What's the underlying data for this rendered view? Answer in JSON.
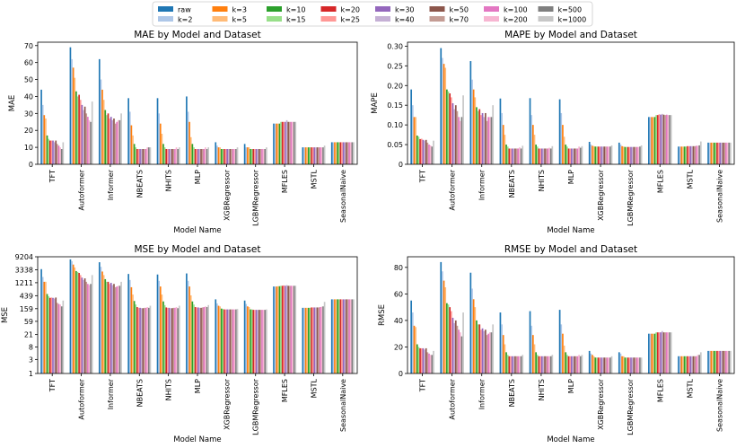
{
  "legend": [
    "raw",
    "k=2",
    "k=3",
    "k=5",
    "k=10",
    "k=15",
    "k=20",
    "k=25",
    "k=30",
    "k=40",
    "k=50",
    "k=70",
    "k=100",
    "k=200",
    "k=500",
    "k=1000"
  ],
  "colors": [
    "#1f77b4",
    "#aec7e8",
    "#ff7f0e",
    "#ffbb78",
    "#2ca02c",
    "#98df8a",
    "#d62728",
    "#ff9896",
    "#9467bd",
    "#c5b0d5",
    "#8c564b",
    "#c49c94",
    "#e377c2",
    "#f7b6d2",
    "#7f7f7f",
    "#c7c7c7"
  ],
  "chart_data": [
    {
      "type": "bar",
      "title": "MAE by Model and Dataset",
      "xlabel": "Model Name",
      "ylabel": "MAE",
      "scale": "linear",
      "ylim": [
        0,
        72
      ],
      "yticks": [
        0,
        10,
        20,
        30,
        40,
        50,
        60,
        70
      ],
      "categories": [
        "TFT",
        "Autoformer",
        "Informer",
        "NBEATS",
        "NHITS",
        "MLP",
        "XGBRegressor",
        "LGBMRegressor",
        "MFLES",
        "MSTL",
        "SeasonalNaive"
      ],
      "series_values": [
        [
          44,
          35,
          29,
          27,
          17,
          15,
          14,
          14,
          14,
          13,
          14,
          12,
          11,
          10,
          9,
          13
        ],
        [
          69,
          62,
          57,
          51,
          43,
          40,
          41,
          38,
          35,
          32,
          34,
          30,
          28,
          26,
          25,
          37
        ],
        [
          62,
          50,
          44,
          38,
          32,
          29,
          30,
          27,
          28,
          26,
          27,
          24,
          25,
          26,
          26,
          30
        ],
        [
          39,
          31,
          23,
          17,
          12,
          10,
          9,
          9,
          9,
          9,
          9,
          9,
          9,
          10,
          10,
          10
        ],
        [
          39,
          30,
          24,
          18,
          12,
          10,
          9,
          9,
          9,
          9,
          9,
          9,
          9,
          10,
          9,
          10
        ],
        [
          40,
          31,
          25,
          16,
          12,
          10,
          9,
          9,
          9,
          9,
          9,
          9,
          9,
          10,
          9,
          10
        ],
        [
          13,
          11,
          10,
          10,
          9,
          9,
          9,
          9,
          9,
          9,
          9,
          9,
          9,
          9,
          9,
          10
        ],
        [
          12,
          10,
          10,
          10,
          9,
          9,
          9,
          9,
          9,
          9,
          9,
          9,
          9,
          9,
          9,
          10
        ],
        [
          24,
          24,
          24,
          24,
          24,
          25,
          25,
          25,
          25,
          26,
          25,
          25,
          25,
          25,
          25,
          25
        ],
        [
          10,
          10,
          10,
          10,
          10,
          10,
          10,
          10,
          10,
          10,
          10,
          10,
          10,
          10,
          10,
          11
        ],
        [
          13,
          13,
          13,
          13,
          13,
          13,
          13,
          13,
          13,
          13,
          13,
          13,
          13,
          13,
          13,
          13
        ]
      ]
    },
    {
      "type": "bar",
      "title": "MAPE by Model and Dataset",
      "xlabel": "Model Name",
      "ylabel": "MAPE",
      "scale": "linear",
      "ylim": [
        0,
        0.31
      ],
      "yticks": [
        0,
        0.05,
        0.1,
        0.15,
        0.2,
        0.25,
        0.3
      ],
      "categories": [
        "TFT",
        "Autoformer",
        "Informer",
        "NBEATS",
        "NHITS",
        "MLP",
        "XGBRegressor",
        "LGBMRegressor",
        "MFLES",
        "MSTL",
        "SeasonalNaive"
      ],
      "series_values": [
        [
          0.19,
          0.15,
          0.12,
          0.12,
          0.073,
          0.07,
          0.064,
          0.065,
          0.062,
          0.06,
          0.062,
          0.055,
          0.05,
          0.048,
          0.045,
          0.06
        ],
        [
          0.295,
          0.27,
          0.255,
          0.245,
          0.19,
          0.185,
          0.18,
          0.17,
          0.155,
          0.14,
          0.15,
          0.135,
          0.12,
          0.11,
          0.12,
          0.175
        ],
        [
          0.262,
          0.215,
          0.19,
          0.17,
          0.145,
          0.135,
          0.14,
          0.125,
          0.13,
          0.12,
          0.13,
          0.11,
          0.12,
          0.12,
          0.12,
          0.15
        ],
        [
          0.167,
          0.13,
          0.1,
          0.075,
          0.05,
          0.045,
          0.04,
          0.04,
          0.04,
          0.04,
          0.04,
          0.04,
          0.04,
          0.043,
          0.04,
          0.047
        ],
        [
          0.168,
          0.125,
          0.1,
          0.075,
          0.05,
          0.045,
          0.04,
          0.04,
          0.04,
          0.04,
          0.04,
          0.04,
          0.04,
          0.042,
          0.04,
          0.046
        ],
        [
          0.165,
          0.13,
          0.1,
          0.07,
          0.05,
          0.045,
          0.04,
          0.04,
          0.04,
          0.04,
          0.04,
          0.04,
          0.04,
          0.045,
          0.042,
          0.046
        ],
        [
          0.057,
          0.05,
          0.047,
          0.046,
          0.045,
          0.045,
          0.045,
          0.045,
          0.045,
          0.045,
          0.045,
          0.045,
          0.045,
          0.045,
          0.045,
          0.048
        ],
        [
          0.055,
          0.05,
          0.046,
          0.045,
          0.044,
          0.044,
          0.044,
          0.044,
          0.044,
          0.044,
          0.044,
          0.044,
          0.044,
          0.044,
          0.045,
          0.048
        ],
        [
          0.12,
          0.12,
          0.12,
          0.12,
          0.12,
          0.125,
          0.125,
          0.127,
          0.126,
          0.128,
          0.126,
          0.125,
          0.126,
          0.125,
          0.125,
          0.125
        ],
        [
          0.045,
          0.045,
          0.045,
          0.045,
          0.045,
          0.045,
          0.046,
          0.046,
          0.046,
          0.046,
          0.046,
          0.046,
          0.047,
          0.047,
          0.048,
          0.058
        ],
        [
          0.055,
          0.055,
          0.055,
          0.055,
          0.055,
          0.055,
          0.055,
          0.055,
          0.055,
          0.055,
          0.055,
          0.055,
          0.055,
          0.055,
          0.055,
          0.055
        ]
      ]
    },
    {
      "type": "bar",
      "title": "MSE by Model and Dataset",
      "xlabel": "Model Name",
      "ylabel": "MSE",
      "scale": "symlog",
      "ylim": [
        1,
        9204
      ],
      "yticks": [
        1,
        3,
        8,
        21,
        59,
        159,
        439,
        1211,
        3338,
        9204
      ],
      "categories": [
        "TFT",
        "Autoformer",
        "Informer",
        "NBEATS",
        "NHITS",
        "MLP",
        "XGBRegressor",
        "LGBMRegressor",
        "MFLES",
        "MSTL",
        "SeasonalNaive"
      ],
      "series_values": [
        [
          3500,
          1900,
          1300,
          1300,
          500,
          420,
          370,
          380,
          370,
          350,
          380,
          250,
          230,
          220,
          190,
          300
        ],
        [
          7500,
          6500,
          5000,
          4000,
          3000,
          2800,
          2600,
          2200,
          1800,
          1500,
          1700,
          1300,
          1100,
          1000,
          1100,
          2200
        ],
        [
          6000,
          4200,
          2900,
          2200,
          1600,
          1300,
          1300,
          1100,
          1200,
          1000,
          1100,
          850,
          900,
          950,
          950,
          1300
        ],
        [
          2400,
          1500,
          850,
          480,
          290,
          220,
          180,
          170,
          170,
          165,
          165,
          170,
          170,
          180,
          170,
          200
        ],
        [
          2300,
          1400,
          900,
          480,
          280,
          210,
          175,
          170,
          170,
          165,
          165,
          170,
          170,
          180,
          165,
          200
        ],
        [
          2500,
          1400,
          900,
          450,
          280,
          220,
          180,
          175,
          175,
          170,
          170,
          175,
          180,
          190,
          180,
          210
        ],
        [
          330,
          240,
          200,
          190,
          160,
          155,
          150,
          150,
          150,
          150,
          150,
          150,
          150,
          150,
          150,
          155
        ],
        [
          300,
          230,
          190,
          180,
          150,
          150,
          145,
          145,
          145,
          145,
          145,
          145,
          145,
          145,
          145,
          150
        ],
        [
          900,
          900,
          900,
          920,
          920,
          950,
          950,
          980,
          950,
          1000,
          950,
          950,
          950,
          950,
          950,
          950
        ],
        [
          170,
          170,
          170,
          170,
          170,
          170,
          175,
          175,
          175,
          175,
          175,
          175,
          180,
          185,
          190,
          270
        ],
        [
          330,
          330,
          330,
          330,
          330,
          330,
          330,
          330,
          330,
          330,
          330,
          330,
          330,
          330,
          330,
          330
        ]
      ]
    },
    {
      "type": "bar",
      "title": "RMSE by Model and Dataset",
      "xlabel": "Model Name",
      "ylabel": "RMSE",
      "scale": "linear",
      "ylim": [
        0,
        88
      ],
      "yticks": [
        0,
        20,
        40,
        60,
        80
      ],
      "categories": [
        "TFT",
        "Autoformer",
        "Informer",
        "NBEATS",
        "NHITS",
        "MLP",
        "XGBRegressor",
        "LGBMRegressor",
        "MFLES",
        "MSTL",
        "SeasonalNaive"
      ],
      "series_values": [
        [
          55,
          46,
          36,
          35,
          22,
          20,
          19,
          19,
          19,
          18,
          19,
          16,
          15,
          14,
          14,
          17
        ],
        [
          84,
          77,
          70,
          65,
          53,
          52,
          50,
          47,
          42,
          38,
          40,
          36,
          33,
          31,
          28,
          46
        ],
        [
          76,
          64,
          56,
          50,
          40,
          37,
          37,
          33,
          34,
          32,
          33,
          29,
          30,
          31,
          31,
          37
        ],
        [
          46,
          37,
          29,
          22,
          16,
          14,
          13,
          13,
          13,
          13,
          13,
          13,
          13,
          13,
          13,
          14
        ],
        [
          47,
          36,
          29,
          22,
          16,
          14,
          13,
          13,
          13,
          13,
          13,
          13,
          13,
          13,
          13,
          14
        ],
        [
          48,
          37,
          30,
          21,
          16,
          14,
          13,
          13,
          13,
          13,
          13,
          13,
          13,
          14,
          13,
          14
        ],
        [
          17,
          15,
          14,
          13,
          12,
          12,
          12,
          12,
          12,
          12,
          12,
          12,
          12,
          12,
          12,
          13
        ],
        [
          16,
          15,
          13,
          13,
          12,
          12,
          12,
          12,
          12,
          12,
          12,
          12,
          12,
          12,
          12,
          12
        ],
        [
          30,
          30,
          30,
          30,
          30,
          31,
          31,
          31,
          31,
          32,
          31,
          31,
          31,
          31,
          31,
          31
        ],
        [
          13,
          13,
          13,
          13,
          13,
          13,
          13,
          13,
          13,
          13,
          13,
          13,
          13,
          14,
          14,
          16
        ],
        [
          17,
          17,
          17,
          17,
          17,
          17,
          17,
          17,
          17,
          17,
          17,
          17,
          17,
          17,
          17,
          17
        ]
      ]
    }
  ]
}
